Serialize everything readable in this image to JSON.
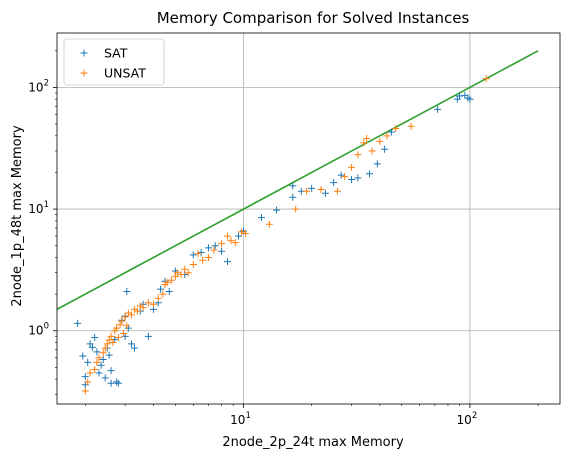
{
  "chart_data": {
    "type": "scatter",
    "title": "Memory Comparison for Solved Instances",
    "xlabel": "2node_2p_24t max Memory",
    "ylabel": "2node_1p_48t max Memory",
    "xscale": "log",
    "yscale": "log",
    "xlim": [
      1.5,
      250
    ],
    "ylim": [
      0.25,
      280
    ],
    "grid": true,
    "legend_position": "top-left",
    "x_ticks": [
      {
        "value": 10,
        "base": "10",
        "exp": "1"
      },
      {
        "value": 100,
        "base": "10",
        "exp": "2"
      }
    ],
    "y_ticks": [
      {
        "value": 1,
        "base": "10",
        "exp": "0"
      },
      {
        "value": 10,
        "base": "10",
        "exp": "1"
      },
      {
        "value": 100,
        "base": "10",
        "exp": "2"
      }
    ],
    "series": [
      {
        "name": "SAT",
        "color": "#1f77b4",
        "marker": "+",
        "points": [
          [
            1.85,
            1.15
          ],
          [
            1.95,
            0.62
          ],
          [
            2.0,
            0.42
          ],
          [
            2.0,
            0.36
          ],
          [
            2.05,
            0.55
          ],
          [
            2.1,
            0.78
          ],
          [
            2.15,
            0.73
          ],
          [
            2.2,
            0.88
          ],
          [
            2.25,
            0.67
          ],
          [
            2.3,
            0.45
          ],
          [
            2.35,
            0.52
          ],
          [
            2.4,
            0.58
          ],
          [
            2.45,
            0.41
          ],
          [
            2.5,
            0.72
          ],
          [
            2.55,
            0.63
          ],
          [
            2.6,
            0.47
          ],
          [
            2.6,
            0.37
          ],
          [
            2.7,
            0.85
          ],
          [
            2.75,
            0.38
          ],
          [
            2.8,
            0.37
          ],
          [
            2.9,
            1.22
          ],
          [
            3.0,
            1.32
          ],
          [
            3.0,
            0.9
          ],
          [
            3.05,
            2.1
          ],
          [
            3.1,
            1.05
          ],
          [
            3.2,
            0.78
          ],
          [
            3.3,
            0.72
          ],
          [
            3.5,
            1.45
          ],
          [
            3.6,
            1.65
          ],
          [
            3.8,
            0.9
          ],
          [
            4.0,
            1.5
          ],
          [
            4.2,
            1.7
          ],
          [
            4.3,
            2.2
          ],
          [
            4.5,
            2.55
          ],
          [
            4.7,
            2.1
          ],
          [
            5.0,
            3.1
          ],
          [
            5.5,
            2.9
          ],
          [
            6.0,
            4.2
          ],
          [
            6.5,
            4.4
          ],
          [
            7.0,
            4.8
          ],
          [
            7.5,
            5.0
          ],
          [
            8.0,
            4.5
          ],
          [
            8.5,
            3.7
          ],
          [
            9.5,
            6.0
          ],
          [
            10.0,
            6.6
          ],
          [
            12.0,
            8.5
          ],
          [
            14.0,
            9.8
          ],
          [
            16.5,
            15.5
          ],
          [
            16.5,
            12.5
          ],
          [
            18.0,
            14.0
          ],
          [
            20.0,
            14.8
          ],
          [
            23.0,
            13.5
          ],
          [
            25.0,
            16.5
          ],
          [
            27.0,
            19.0
          ],
          [
            30.0,
            17.5
          ],
          [
            32.0,
            18.0
          ],
          [
            36.0,
            19.5
          ],
          [
            39.0,
            23.5
          ],
          [
            42.0,
            31.0
          ],
          [
            45.0,
            43.0
          ],
          [
            72.0,
            66.0
          ],
          [
            88.0,
            80.0
          ],
          [
            90.0,
            85.0
          ],
          [
            95.0,
            86.0
          ],
          [
            98.0,
            82.0
          ],
          [
            100.0,
            80.0
          ]
        ]
      },
      {
        "name": "UNSAT",
        "color": "#ff7f0e",
        "marker": "+",
        "points": [
          [
            2.0,
            0.32
          ],
          [
            2.05,
            0.38
          ],
          [
            2.1,
            0.45
          ],
          [
            2.2,
            0.48
          ],
          [
            2.25,
            0.55
          ],
          [
            2.3,
            0.6
          ],
          [
            2.4,
            0.66
          ],
          [
            2.45,
            0.72
          ],
          [
            2.5,
            0.78
          ],
          [
            2.55,
            0.84
          ],
          [
            2.6,
            0.9
          ],
          [
            2.65,
            0.8
          ],
          [
            2.7,
            1.0
          ],
          [
            2.75,
            1.05
          ],
          [
            2.8,
            0.88
          ],
          [
            2.85,
            1.12
          ],
          [
            2.9,
            1.2
          ],
          [
            2.95,
            0.95
          ],
          [
            3.0,
            1.3
          ],
          [
            3.05,
            1.1
          ],
          [
            3.1,
            1.4
          ],
          [
            3.2,
            1.35
          ],
          [
            3.3,
            1.5
          ],
          [
            3.4,
            1.45
          ],
          [
            3.5,
            1.6
          ],
          [
            3.6,
            1.55
          ],
          [
            3.8,
            1.7
          ],
          [
            4.0,
            1.65
          ],
          [
            4.2,
            1.85
          ],
          [
            4.4,
            2.0
          ],
          [
            4.5,
            2.4
          ],
          [
            4.6,
            2.5
          ],
          [
            4.8,
            2.6
          ],
          [
            5.0,
            2.8
          ],
          [
            5.1,
            3.0
          ],
          [
            5.3,
            2.9
          ],
          [
            5.5,
            3.2
          ],
          [
            5.7,
            3.0
          ],
          [
            6.0,
            3.5
          ],
          [
            6.3,
            4.3
          ],
          [
            6.6,
            3.8
          ],
          [
            7.0,
            4.0
          ],
          [
            7.4,
            4.6
          ],
          [
            8.0,
            5.2
          ],
          [
            8.5,
            6.0
          ],
          [
            8.8,
            5.5
          ],
          [
            9.2,
            5.3
          ],
          [
            9.8,
            6.5
          ],
          [
            10.2,
            6.3
          ],
          [
            13.0,
            7.5
          ],
          [
            17.0,
            10.0
          ],
          [
            19.0,
            14.0
          ],
          [
            22.0,
            14.5
          ],
          [
            26.0,
            14.0
          ],
          [
            28.0,
            18.5
          ],
          [
            30.0,
            22.0
          ],
          [
            32.0,
            28.0
          ],
          [
            34.0,
            35.0
          ],
          [
            35.0,
            38.0
          ],
          [
            37.0,
            30.0
          ],
          [
            40.0,
            36.0
          ],
          [
            43.0,
            40.0
          ],
          [
            47.0,
            46.0
          ],
          [
            55.0,
            48.0
          ],
          [
            118.0,
            118.0
          ]
        ]
      }
    ],
    "reference_line": {
      "color": "#2ca02c",
      "points": [
        [
          1.5,
          1.5
        ],
        [
          200,
          200
        ]
      ]
    }
  }
}
